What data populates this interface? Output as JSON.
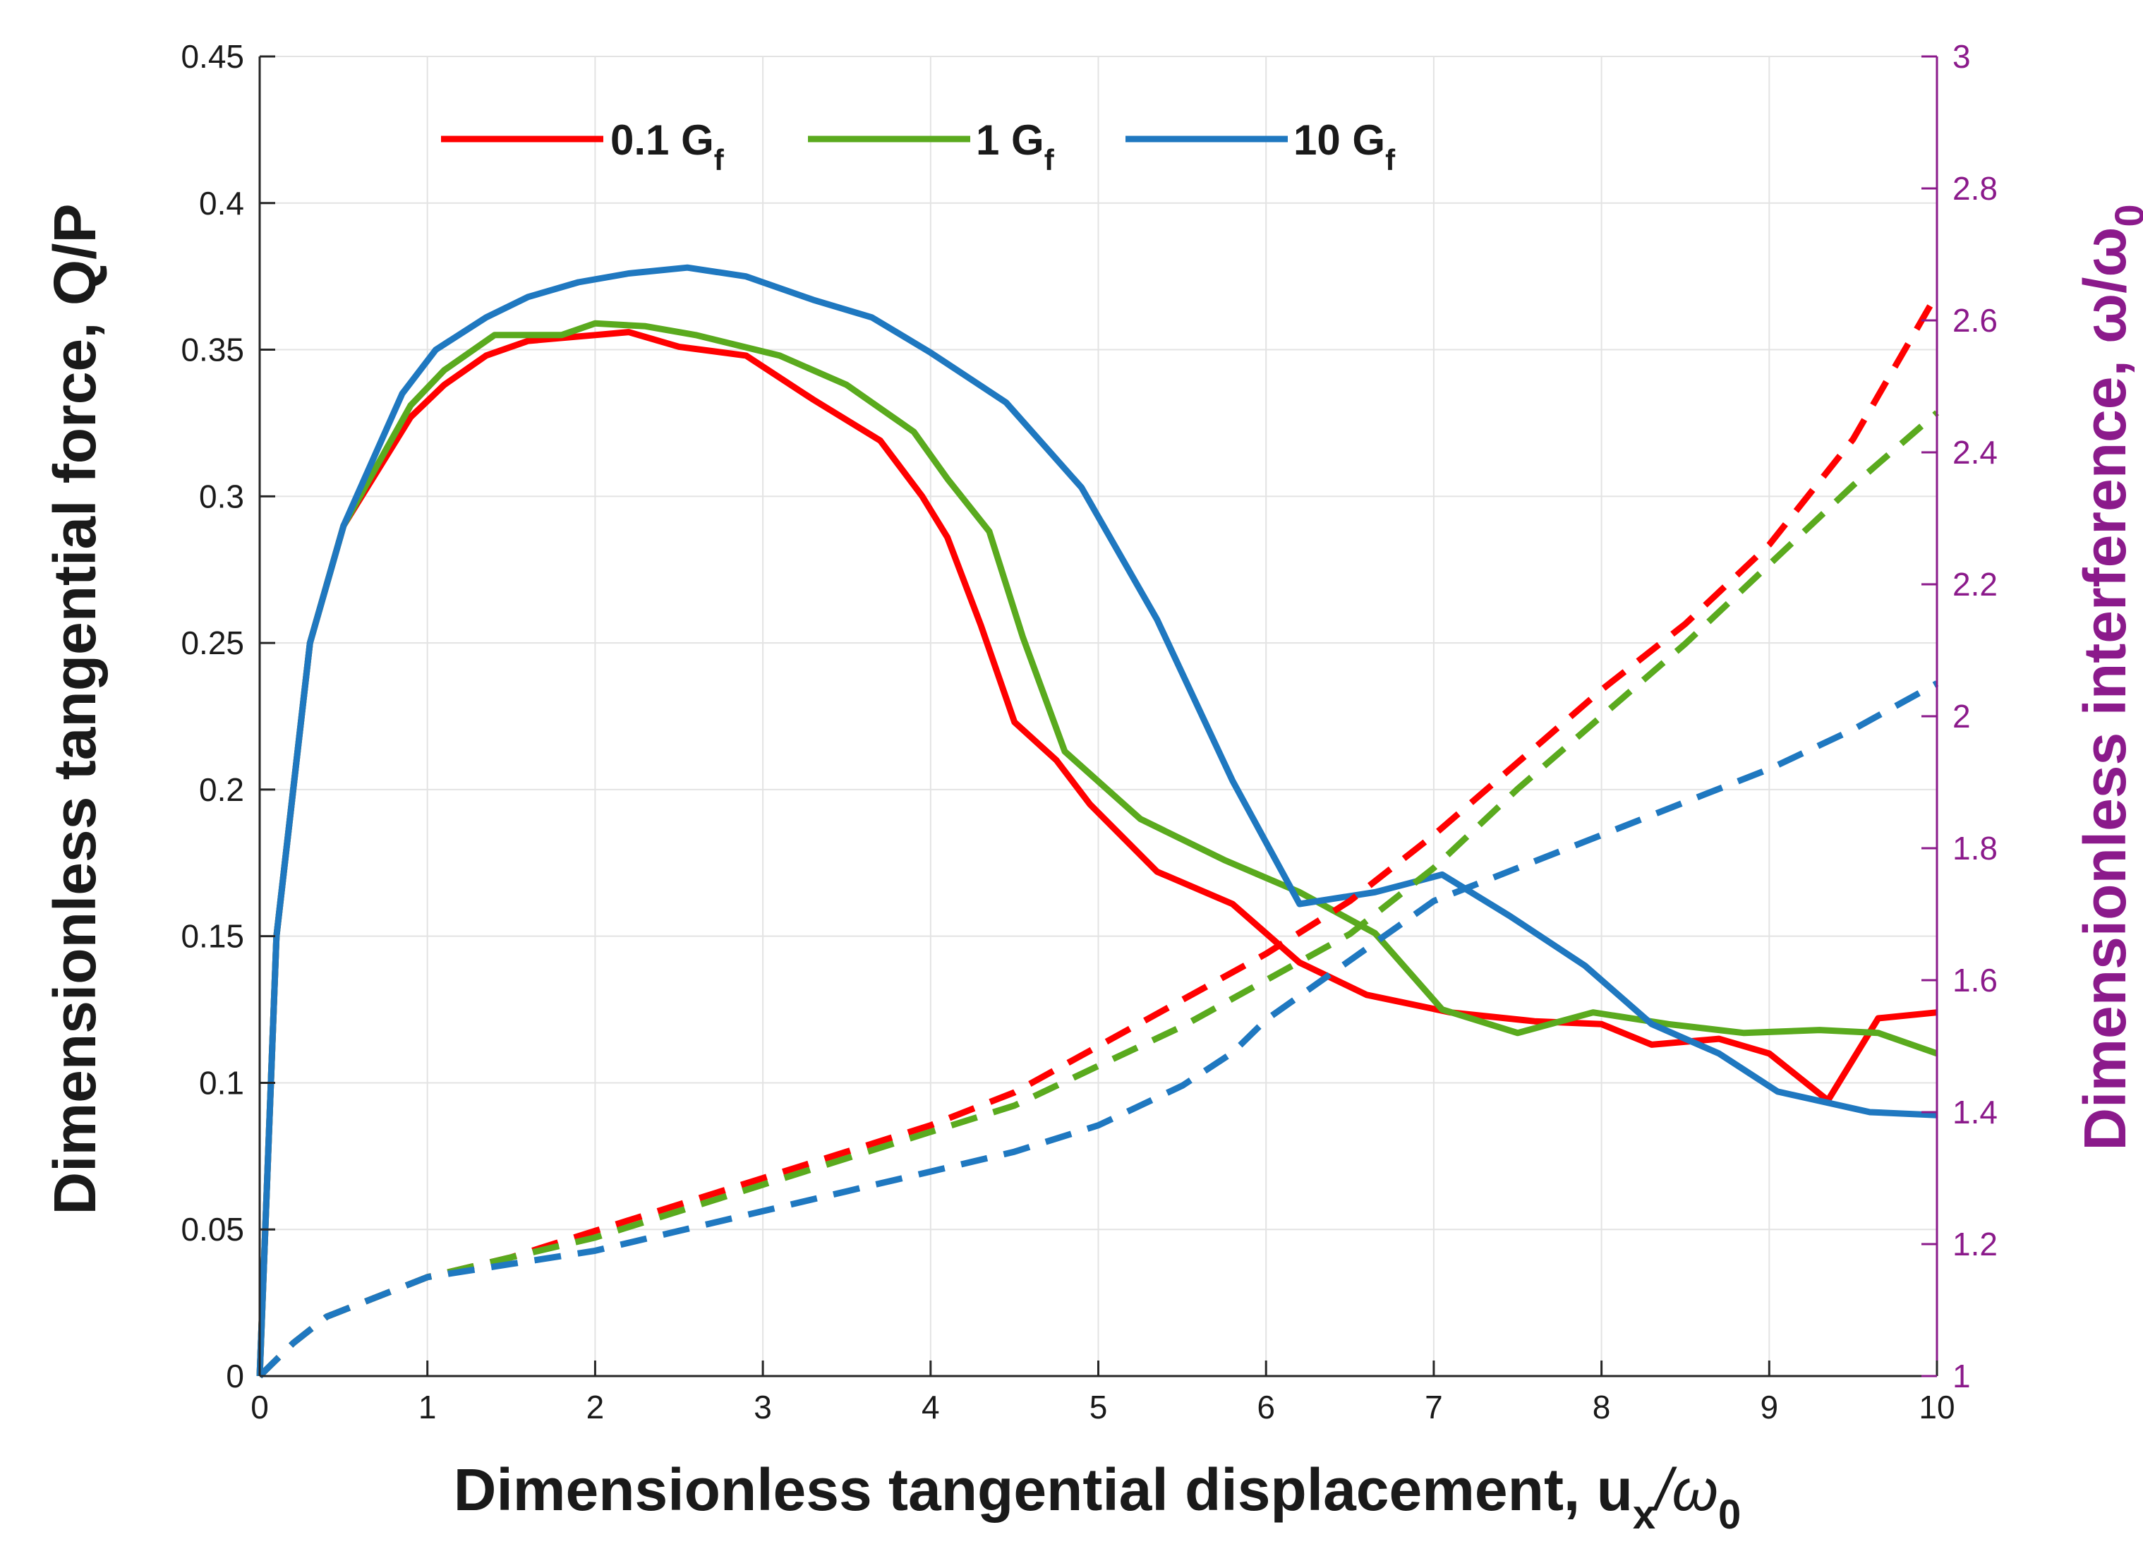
{
  "chart_data": {
    "type": "line",
    "title": "",
    "xlabel": "Dimensionless tangential displacement, u",
    "xlabel_sub": "x",
    "xlabel_tail": "/ω",
    "xlabel_tail_sub": "0",
    "ylabel_left": "Dimensionless tangential force, Q/P",
    "ylabel_right": "Dimensionless interference, ω/ω",
    "ylabel_right_sub": "0",
    "xlim": [
      0,
      10
    ],
    "ylim_left": [
      0,
      0.45
    ],
    "ylim_right": [
      1,
      3
    ],
    "xticks": [
      "0",
      "1",
      "2",
      "3",
      "4",
      "5",
      "6",
      "7",
      "8",
      "9",
      "10"
    ],
    "yticks_left": [
      "0",
      "0.05",
      "0.1",
      "0.15",
      "0.2",
      "0.25",
      "0.3",
      "0.35",
      "0.4",
      "0.45"
    ],
    "yticks_right": [
      "1",
      "1.2",
      "1.4",
      "1.6",
      "1.8",
      "2",
      "2.2",
      "2.4",
      "2.6",
      "2.8",
      "3"
    ],
    "grid": true,
    "legend_position": "top",
    "right_axis_color": "#8B1A8B",
    "series": [
      {
        "name": "0.1 G",
        "name_sub": "f",
        "color": "#FF0000",
        "axis": "left",
        "style": "solid",
        "x": [
          0,
          0.1,
          0.3,
          0.5,
          0.9,
          1.1,
          1.35,
          1.6,
          1.8,
          2.0,
          2.2,
          2.5,
          2.9,
          3.3,
          3.7,
          3.95,
          4.1,
          4.3,
          4.5,
          4.75,
          4.95,
          5.35,
          5.8,
          6.2,
          6.6,
          7.1,
          7.6,
          8.0,
          8.3,
          8.7,
          9.0,
          9.35,
          9.65,
          10.0
        ],
        "y": [
          0,
          0.15,
          0.25,
          0.29,
          0.327,
          0.338,
          0.348,
          0.353,
          0.354,
          0.355,
          0.356,
          0.351,
          0.348,
          0.333,
          0.319,
          0.3,
          0.286,
          0.256,
          0.223,
          0.21,
          0.195,
          0.172,
          0.161,
          0.141,
          0.13,
          0.124,
          0.121,
          0.12,
          0.113,
          0.115,
          0.11,
          0.094,
          0.122,
          0.124
        ]
      },
      {
        "name": "1 G",
        "name_sub": "f",
        "color": "#5AAA1E",
        "axis": "left",
        "style": "solid",
        "x": [
          0,
          0.1,
          0.3,
          0.5,
          0.9,
          1.1,
          1.4,
          1.6,
          1.8,
          2.0,
          2.3,
          2.6,
          3.1,
          3.5,
          3.9,
          4.1,
          4.35,
          4.55,
          4.8,
          5.25,
          5.75,
          6.2,
          6.65,
          7.05,
          7.5,
          7.95,
          8.4,
          8.85,
          9.3,
          9.65,
          10.0
        ],
        "y": [
          0,
          0.15,
          0.25,
          0.29,
          0.331,
          0.343,
          0.355,
          0.355,
          0.355,
          0.359,
          0.358,
          0.355,
          0.348,
          0.338,
          0.322,
          0.306,
          0.288,
          0.252,
          0.213,
          0.19,
          0.176,
          0.165,
          0.151,
          0.125,
          0.117,
          0.124,
          0.12,
          0.117,
          0.118,
          0.117,
          0.11
        ]
      },
      {
        "name": "10 G",
        "name_sub": "f",
        "color": "#1F78C0",
        "axis": "left",
        "style": "solid",
        "x": [
          0,
          0.1,
          0.3,
          0.5,
          0.85,
          1.05,
          1.35,
          1.6,
          1.9,
          2.2,
          2.55,
          2.9,
          3.3,
          3.65,
          4.0,
          4.45,
          4.9,
          5.35,
          5.8,
          6.2,
          6.65,
          7.05,
          7.45,
          7.9,
          8.3,
          8.7,
          9.05,
          9.6,
          10.0
        ],
        "y": [
          0,
          0.15,
          0.25,
          0.29,
          0.335,
          0.35,
          0.361,
          0.368,
          0.373,
          0.376,
          0.378,
          0.375,
          0.367,
          0.361,
          0.349,
          0.332,
          0.303,
          0.258,
          0.203,
          0.161,
          0.165,
          0.171,
          0.157,
          0.14,
          0.12,
          0.11,
          0.097,
          0.09,
          0.089
        ]
      },
      {
        "name": "0.1 G",
        "name_sub": "f",
        "color": "#FF0000",
        "axis": "right",
        "style": "dashed",
        "x": [
          0,
          0.2,
          0.4,
          0.6,
          1.0,
          1.5,
          2.0,
          2.5,
          3.0,
          3.5,
          4.0,
          4.5,
          5.0,
          5.5,
          6.0,
          6.5,
          7.0,
          7.5,
          8.0,
          8.5,
          9.0,
          9.5,
          10.0
        ],
        "y": [
          1.0,
          1.05,
          1.09,
          1.11,
          1.15,
          1.18,
          1.22,
          1.26,
          1.3,
          1.34,
          1.38,
          1.43,
          1.5,
          1.57,
          1.64,
          1.72,
          1.82,
          1.93,
          2.04,
          2.14,
          2.26,
          2.42,
          2.64
        ]
      },
      {
        "name": "1 G",
        "name_sub": "f",
        "color": "#5AAA1E",
        "axis": "right",
        "style": "dashed",
        "x": [
          0,
          0.2,
          0.4,
          0.6,
          1.0,
          1.5,
          2.0,
          2.5,
          3.0,
          3.5,
          4.0,
          4.5,
          5.0,
          5.5,
          6.0,
          6.5,
          7.0,
          7.5,
          8.0,
          8.5,
          9.0,
          9.5,
          10.0
        ],
        "y": [
          1.0,
          1.05,
          1.09,
          1.11,
          1.15,
          1.18,
          1.21,
          1.25,
          1.29,
          1.33,
          1.37,
          1.41,
          1.47,
          1.53,
          1.6,
          1.67,
          1.77,
          1.89,
          2.0,
          2.11,
          2.23,
          2.35,
          2.46
        ]
      },
      {
        "name": "10 G",
        "name_sub": "f",
        "color": "#1F78C0",
        "axis": "right",
        "style": "dashed",
        "x": [
          0,
          0.2,
          0.4,
          0.6,
          1.0,
          1.5,
          2.0,
          2.5,
          3.0,
          3.5,
          4.0,
          4.5,
          5.0,
          5.5,
          5.8,
          6.0,
          6.5,
          7.0,
          7.5,
          8.0,
          8.5,
          9.0,
          9.5,
          10.0
        ],
        "y": [
          1.0,
          1.05,
          1.09,
          1.11,
          1.15,
          1.17,
          1.19,
          1.22,
          1.25,
          1.28,
          1.31,
          1.34,
          1.38,
          1.44,
          1.49,
          1.54,
          1.63,
          1.72,
          1.77,
          1.82,
          1.87,
          1.92,
          1.98,
          2.05
        ]
      }
    ]
  }
}
